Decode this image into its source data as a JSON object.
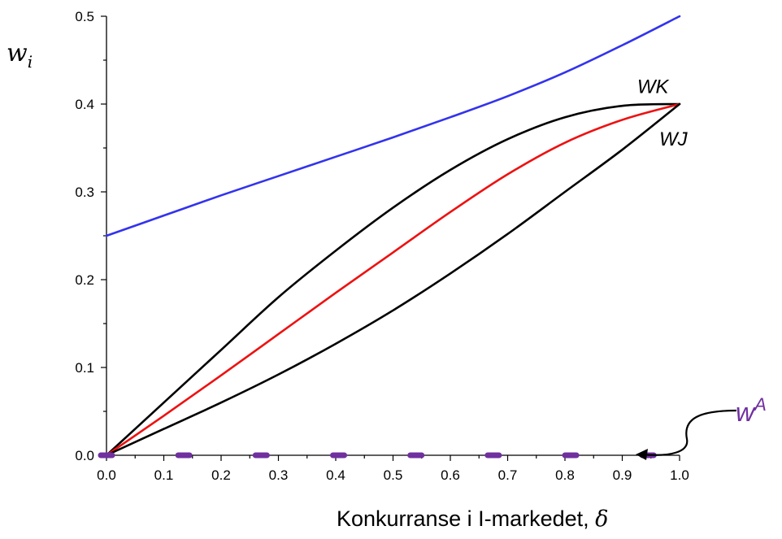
{
  "chart_data": {
    "type": "line",
    "title": "",
    "xlabel": "Konkurranse i I-markedet, ",
    "xlabel_symbol": "δ",
    "ylabel": "w",
    "ylabel_sub": "i",
    "xlim": [
      0.0,
      1.0
    ],
    "ylim": [
      0.0,
      0.5
    ],
    "x_ticks": [
      "0.0",
      "0.1",
      "0.2",
      "0.3",
      "0.4",
      "0.5",
      "0.6",
      "0.7",
      "0.8",
      "0.9",
      "1.0"
    ],
    "y_ticks": [
      "0.0",
      "0.1",
      "0.2",
      "0.3",
      "0.4",
      "0.5"
    ],
    "grid": false,
    "series": [
      {
        "color": "#3333ee",
        "x": [
          0.0,
          0.1,
          0.2,
          0.3,
          0.4,
          0.5,
          0.6,
          0.7,
          0.8,
          0.9,
          1.0
        ],
        "y": [
          0.25,
          0.273,
          0.296,
          0.318,
          0.34,
          0.362,
          0.385,
          0.409,
          0.436,
          0.467,
          0.5
        ]
      },
      {
        "name": "WK",
        "color": "#000000",
        "x": [
          0.0,
          0.1,
          0.2,
          0.3,
          0.4,
          0.5,
          0.6,
          0.7,
          0.8,
          0.9,
          1.0
        ],
        "y": [
          0.0,
          0.06,
          0.12,
          0.18,
          0.233,
          0.282,
          0.325,
          0.36,
          0.385,
          0.398,
          0.4
        ]
      },
      {
        "color": "#ee1111",
        "x": [
          0.0,
          0.1,
          0.2,
          0.3,
          0.4,
          0.5,
          0.6,
          0.7,
          0.8,
          0.9,
          1.0
        ],
        "y": [
          0.0,
          0.045,
          0.091,
          0.138,
          0.185,
          0.231,
          0.277,
          0.32,
          0.356,
          0.382,
          0.4
        ]
      },
      {
        "name": "WJ",
        "color": "#000000",
        "x": [
          0.0,
          0.1,
          0.2,
          0.3,
          0.4,
          0.5,
          0.6,
          0.7,
          0.8,
          0.9,
          1.0
        ],
        "y": [
          0.0,
          0.03,
          0.06,
          0.092,
          0.127,
          0.165,
          0.207,
          0.252,
          0.3,
          0.348,
          0.4
        ]
      }
    ],
    "curve_labels": [
      {
        "text": "WK",
        "x": 0.98,
        "y": 0.42
      },
      {
        "text": "WJ",
        "x": 0.99,
        "y": 0.36
      }
    ],
    "annotation": {
      "text": "w",
      "superscript": "A",
      "color": "#7030a0",
      "points_x": [
        0.0,
        0.135,
        0.27,
        0.405,
        0.54,
        0.675,
        0.81,
        0.945
      ],
      "points_y": 0.0
    }
  }
}
